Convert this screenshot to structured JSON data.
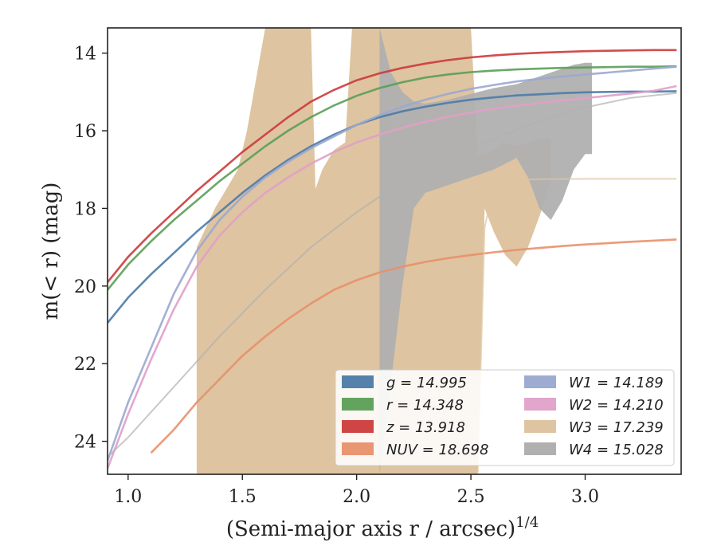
{
  "chart_data": {
    "type": "line",
    "xlabel": "(Semi-major axis r / arcsec)",
    "xlabel_sup": "1/4",
    "ylabel": "m(< r) (mag)",
    "xlim": [
      0.91,
      3.42
    ],
    "ylim": [
      24.85,
      13.35
    ],
    "y_inverted": true,
    "x_ticks": [
      1.0,
      1.5,
      2.0,
      2.5,
      3.0
    ],
    "x_tick_labels": [
      "1.0",
      "1.5",
      "2.0",
      "2.5",
      "3.0"
    ],
    "y_ticks": [
      14,
      16,
      18,
      20,
      22,
      24
    ],
    "y_tick_labels": [
      "14",
      "16",
      "18",
      "20",
      "22",
      "24"
    ],
    "legend_placement": "lower-right",
    "legend_columns": 2,
    "series": [
      {
        "name": "g = 14.995",
        "color": "#4c7aa8",
        "band": "g",
        "value": "14.995",
        "kind": "line",
        "x": [
          0.91,
          1.0,
          1.1,
          1.2,
          1.3,
          1.4,
          1.5,
          1.6,
          1.7,
          1.8,
          1.9,
          2.0,
          2.1,
          2.2,
          2.3,
          2.4,
          2.5,
          2.6,
          2.7,
          2.8,
          2.9,
          3.0,
          3.1,
          3.2,
          3.3,
          3.4
        ],
        "y": [
          20.95,
          20.3,
          19.7,
          19.15,
          18.6,
          18.1,
          17.6,
          17.15,
          16.75,
          16.4,
          16.1,
          15.85,
          15.65,
          15.5,
          15.38,
          15.28,
          15.2,
          15.14,
          15.09,
          15.06,
          15.03,
          15.01,
          15.0,
          14.99,
          14.99,
          14.98
        ]
      },
      {
        "name": "r = 14.348",
        "color": "#5a9e55",
        "band": "r",
        "value": "14.348",
        "kind": "line",
        "x": [
          0.91,
          1.0,
          1.1,
          1.2,
          1.3,
          1.4,
          1.5,
          1.6,
          1.7,
          1.8,
          1.9,
          2.0,
          2.1,
          2.2,
          2.3,
          2.4,
          2.5,
          2.6,
          2.7,
          2.8,
          2.9,
          3.0,
          3.1,
          3.2,
          3.3,
          3.4
        ],
        "y": [
          20.1,
          19.45,
          18.85,
          18.3,
          17.8,
          17.3,
          16.85,
          16.4,
          16.0,
          15.65,
          15.35,
          15.1,
          14.9,
          14.75,
          14.63,
          14.55,
          14.49,
          14.45,
          14.42,
          14.4,
          14.38,
          14.37,
          14.36,
          14.35,
          14.35,
          14.34
        ]
      },
      {
        "name": "z = 13.918",
        "color": "#cc3a3a",
        "band": "z",
        "value": "13.918",
        "kind": "line",
        "x": [
          0.91,
          1.0,
          1.1,
          1.2,
          1.3,
          1.4,
          1.5,
          1.6,
          1.7,
          1.8,
          1.9,
          2.0,
          2.1,
          2.2,
          2.3,
          2.4,
          2.5,
          2.6,
          2.7,
          2.8,
          2.9,
          3.0,
          3.1,
          3.2,
          3.3,
          3.4
        ],
        "y": [
          19.9,
          19.25,
          18.65,
          18.1,
          17.55,
          17.05,
          16.55,
          16.1,
          15.65,
          15.25,
          14.95,
          14.7,
          14.52,
          14.38,
          14.27,
          14.18,
          14.11,
          14.06,
          14.02,
          13.99,
          13.97,
          13.95,
          13.94,
          13.93,
          13.92,
          13.92
        ]
      },
      {
        "name": "NUV = 18.698",
        "color": "#e8906a",
        "band": "NUV",
        "value": "18.698",
        "kind": "line",
        "x": [
          1.1,
          1.2,
          1.3,
          1.4,
          1.5,
          1.6,
          1.7,
          1.8,
          1.9,
          2.0,
          2.1,
          2.2,
          2.3,
          2.4,
          2.5,
          2.6,
          2.7,
          2.8,
          2.9,
          3.0,
          3.2,
          3.4
        ],
        "y": [
          24.3,
          23.7,
          23.0,
          22.4,
          21.8,
          21.3,
          20.85,
          20.45,
          20.1,
          19.85,
          19.65,
          19.5,
          19.38,
          19.28,
          19.2,
          19.13,
          19.07,
          19.02,
          18.97,
          18.93,
          18.86,
          18.8
        ]
      },
      {
        "name": "W1 = 14.189",
        "color": "#9aa8d0",
        "band": "W1",
        "value": "14.189",
        "kind": "line",
        "x": [
          0.91,
          1.0,
          1.1,
          1.2,
          1.3,
          1.4,
          1.5,
          1.6,
          1.7,
          1.8,
          1.9,
          2.0,
          2.1,
          2.2,
          2.3,
          2.4,
          2.5,
          2.6,
          2.7,
          2.8,
          2.9,
          3.0,
          3.1,
          3.2,
          3.3,
          3.4
        ],
        "y": [
          24.5,
          23.0,
          21.6,
          20.2,
          19.1,
          18.3,
          17.7,
          17.2,
          16.8,
          16.45,
          16.15,
          15.85,
          15.6,
          15.38,
          15.2,
          15.05,
          14.92,
          14.82,
          14.73,
          14.66,
          14.6,
          14.55,
          14.5,
          14.45,
          14.4,
          14.35
        ]
      },
      {
        "name": "W2 = 14.210",
        "color": "#e0a0c8",
        "band": "W2",
        "value": "14.210",
        "kind": "line",
        "x": [
          0.91,
          1.0,
          1.1,
          1.2,
          1.3,
          1.4,
          1.5,
          1.6,
          1.7,
          1.8,
          1.9,
          2.0,
          2.1,
          2.2,
          2.3,
          2.4,
          2.5,
          2.6,
          2.7,
          2.8,
          2.9,
          3.0,
          3.1,
          3.2,
          3.3,
          3.4
        ],
        "y": [
          24.7,
          23.3,
          21.9,
          20.6,
          19.5,
          18.7,
          18.1,
          17.6,
          17.2,
          16.85,
          16.55,
          16.3,
          16.1,
          15.92,
          15.77,
          15.64,
          15.53,
          15.43,
          15.35,
          15.28,
          15.22,
          15.16,
          15.1,
          15.04,
          14.97,
          14.85
        ]
      },
      {
        "name": "W3 = 17.239",
        "color": "#dec4a0",
        "band": "W3",
        "value": "17.239",
        "kind": "band",
        "x": [
          1.3,
          1.38,
          1.48,
          1.52,
          1.55,
          1.6,
          1.65,
          1.7,
          1.75,
          1.8,
          1.82,
          1.85,
          1.9,
          1.95,
          1.98,
          2.02,
          2.06,
          2.1,
          2.15,
          2.2,
          2.3,
          2.4,
          2.5,
          2.53,
          2.56,
          2.6,
          2.65,
          2.7,
          2.75,
          2.8,
          2.85
        ],
        "y_low": [
          24.85,
          24.85,
          24.85,
          24.85,
          24.85,
          24.85,
          24.85,
          24.85,
          24.85,
          24.85,
          24.85,
          24.85,
          24.85,
          24.85,
          24.85,
          24.85,
          24.85,
          24.85,
          24.85,
          24.85,
          24.85,
          24.85,
          24.85,
          24.85,
          18.0,
          18.6,
          19.2,
          19.5,
          19.0,
          18.2,
          17.3
        ],
        "y_high": [
          19.0,
          18.0,
          17.0,
          16.0,
          15.0,
          13.35,
          13.35,
          13.35,
          13.35,
          13.35,
          17.5,
          17.0,
          16.5,
          16.3,
          13.35,
          13.35,
          13.35,
          13.35,
          13.35,
          13.35,
          13.35,
          13.35,
          13.35,
          16.6,
          16.6,
          16.5,
          16.3,
          16.4,
          16.3,
          16.2,
          16.2
        ],
        "curve_x": [
          2.53,
          2.56,
          2.6,
          2.7,
          2.8,
          3.0,
          3.2,
          3.4
        ],
        "curve_y": [
          24.8,
          18.5,
          17.4,
          17.26,
          17.245,
          17.24,
          17.24,
          17.239
        ]
      },
      {
        "name": "W4 = 15.028",
        "color": "#b0b0b0",
        "band": "W4",
        "value": "15.028",
        "kind": "band",
        "x": [
          2.1,
          2.15,
          2.2,
          2.25,
          2.3,
          2.4,
          2.5,
          2.6,
          2.7,
          2.75,
          2.8,
          2.85,
          2.9,
          2.95,
          3.0,
          3.03
        ],
        "y_low": [
          24.85,
          22.5,
          20.0,
          18.0,
          17.6,
          17.4,
          17.2,
          17.0,
          16.7,
          17.2,
          18.0,
          18.3,
          17.8,
          17.0,
          16.6,
          16.6
        ],
        "y_high": [
          13.35,
          14.5,
          15.0,
          15.25,
          15.3,
          15.2,
          15.05,
          14.9,
          14.8,
          14.7,
          14.6,
          14.5,
          14.4,
          14.3,
          14.25,
          14.25
        ],
        "curve_x": [
          0.91,
          1.0,
          1.2,
          1.4,
          1.6,
          1.8,
          2.0,
          2.2,
          2.4,
          2.6,
          2.8,
          3.0,
          3.2,
          3.4
        ],
        "curve_y": [
          24.4,
          23.9,
          22.6,
          21.3,
          20.1,
          19.0,
          18.1,
          17.3,
          16.7,
          16.2,
          15.75,
          15.4,
          15.15,
          15.03
        ]
      }
    ]
  }
}
